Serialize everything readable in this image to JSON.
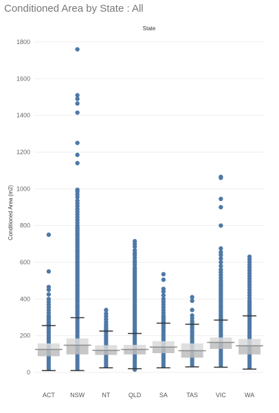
{
  "chart_data": {
    "type": "box",
    "title": "Conditioned Area by State : All",
    "header": "State",
    "ylabel": "Conditioned Area (m2)",
    "xlabel": "",
    "ylim": [
      0,
      1800
    ],
    "yticks": [
      0,
      200,
      400,
      600,
      800,
      1000,
      1200,
      1400,
      1600,
      1800
    ],
    "grid": true,
    "categories": [
      "ACT",
      "NSW",
      "NT",
      "QLD",
      "SA",
      "TAS",
      "VIC",
      "WA"
    ],
    "boxes": [
      {
        "category": "ACT",
        "whisker_low": 10,
        "q1": 88,
        "median": 125,
        "q3": 158,
        "whisker_high": 255
      },
      {
        "category": "NSW",
        "whisker_low": 10,
        "q1": 98,
        "median": 148,
        "q3": 185,
        "whisker_high": 298
      },
      {
        "category": "NT",
        "whisker_low": 25,
        "q1": 95,
        "median": 120,
        "q3": 148,
        "whisker_high": 225
      },
      {
        "category": "QLD",
        "whisker_low": 20,
        "q1": 98,
        "median": 125,
        "q3": 150,
        "whisker_high": 212
      },
      {
        "category": "SA",
        "whisker_low": 25,
        "q1": 105,
        "median": 138,
        "q3": 170,
        "whisker_high": 268
      },
      {
        "category": "TAS",
        "whisker_low": 30,
        "q1": 80,
        "median": 118,
        "q3": 158,
        "whisker_high": 262
      },
      {
        "category": "VIC",
        "whisker_low": 28,
        "q1": 128,
        "median": 163,
        "q3": 190,
        "whisker_high": 285
      },
      {
        "category": "WA",
        "whisker_low": 18,
        "q1": 98,
        "median": 145,
        "q3": 182,
        "whisker_high": 308
      }
    ],
    "points": [
      {
        "category": "ACT",
        "values": [
          750,
          550,
          465,
          450,
          425,
          400,
          385,
          370,
          355,
          340,
          325,
          310,
          300,
          290,
          280,
          270,
          262
        ]
      },
      {
        "category": "NSW",
        "values": [
          1760,
          1510,
          1490,
          1465,
          1415,
          1250,
          1185,
          1140,
          995,
          985,
          970,
          955,
          935,
          920,
          905,
          890,
          875,
          860,
          845,
          830,
          815,
          800,
          790,
          780,
          770,
          760,
          750,
          740,
          730,
          720,
          710,
          700,
          690,
          680,
          670,
          660,
          650,
          640,
          630,
          620,
          610,
          600,
          590,
          580,
          570,
          560,
          550,
          540,
          530,
          520,
          510,
          500,
          490,
          480,
          470,
          460,
          450,
          440,
          430,
          420,
          410,
          400,
          390,
          380,
          370,
          360,
          350,
          340,
          330,
          320,
          310
        ]
      },
      {
        "category": "NT",
        "values": [
          340,
          320,
          305,
          290,
          275,
          262,
          250,
          240,
          232
        ]
      },
      {
        "category": "QLD",
        "values": [
          715,
          700,
          685,
          665,
          650,
          640,
          625,
          610,
          598,
          585,
          570,
          560,
          550,
          540,
          530,
          520,
          510,
          500,
          490,
          480,
          470,
          460,
          450,
          440,
          430,
          420,
          410,
          400,
          390,
          380,
          370,
          360,
          350,
          340,
          330,
          320,
          310,
          300,
          290,
          280,
          270,
          260,
          250,
          240,
          230,
          222,
          215,
          15
        ]
      },
      {
        "category": "SA",
        "values": [
          535,
          505,
          455,
          440,
          420,
          400,
          385,
          370,
          355,
          340,
          325,
          310,
          300,
          290,
          280,
          272
        ]
      },
      {
        "category": "TAS",
        "values": [
          410,
          390,
          340,
          310,
          295,
          280,
          270
        ]
      },
      {
        "category": "VIC",
        "values": [
          1065,
          1060,
          945,
          900,
          800,
          675,
          655,
          640,
          620,
          600,
          580,
          560,
          545,
          530,
          515,
          500,
          490,
          480,
          470,
          460,
          450,
          440,
          430,
          420,
          410,
          400,
          390,
          380,
          370,
          360,
          350,
          340,
          330,
          320,
          310,
          300,
          292
        ]
      },
      {
        "category": "WA",
        "values": [
          630,
          615,
          600,
          585,
          570,
          555,
          540,
          525,
          510,
          495,
          480,
          465,
          450,
          435,
          420,
          405,
          390,
          380,
          370,
          360,
          350,
          340,
          330,
          320,
          315
        ]
      }
    ],
    "colors": {
      "points": "#4e79a7",
      "box_outer": "#d9d9d9",
      "box_inner": "#bdbdbd",
      "median": "#8c8c8c",
      "whisker": "#333333",
      "grid": "#eeeeee"
    }
  }
}
